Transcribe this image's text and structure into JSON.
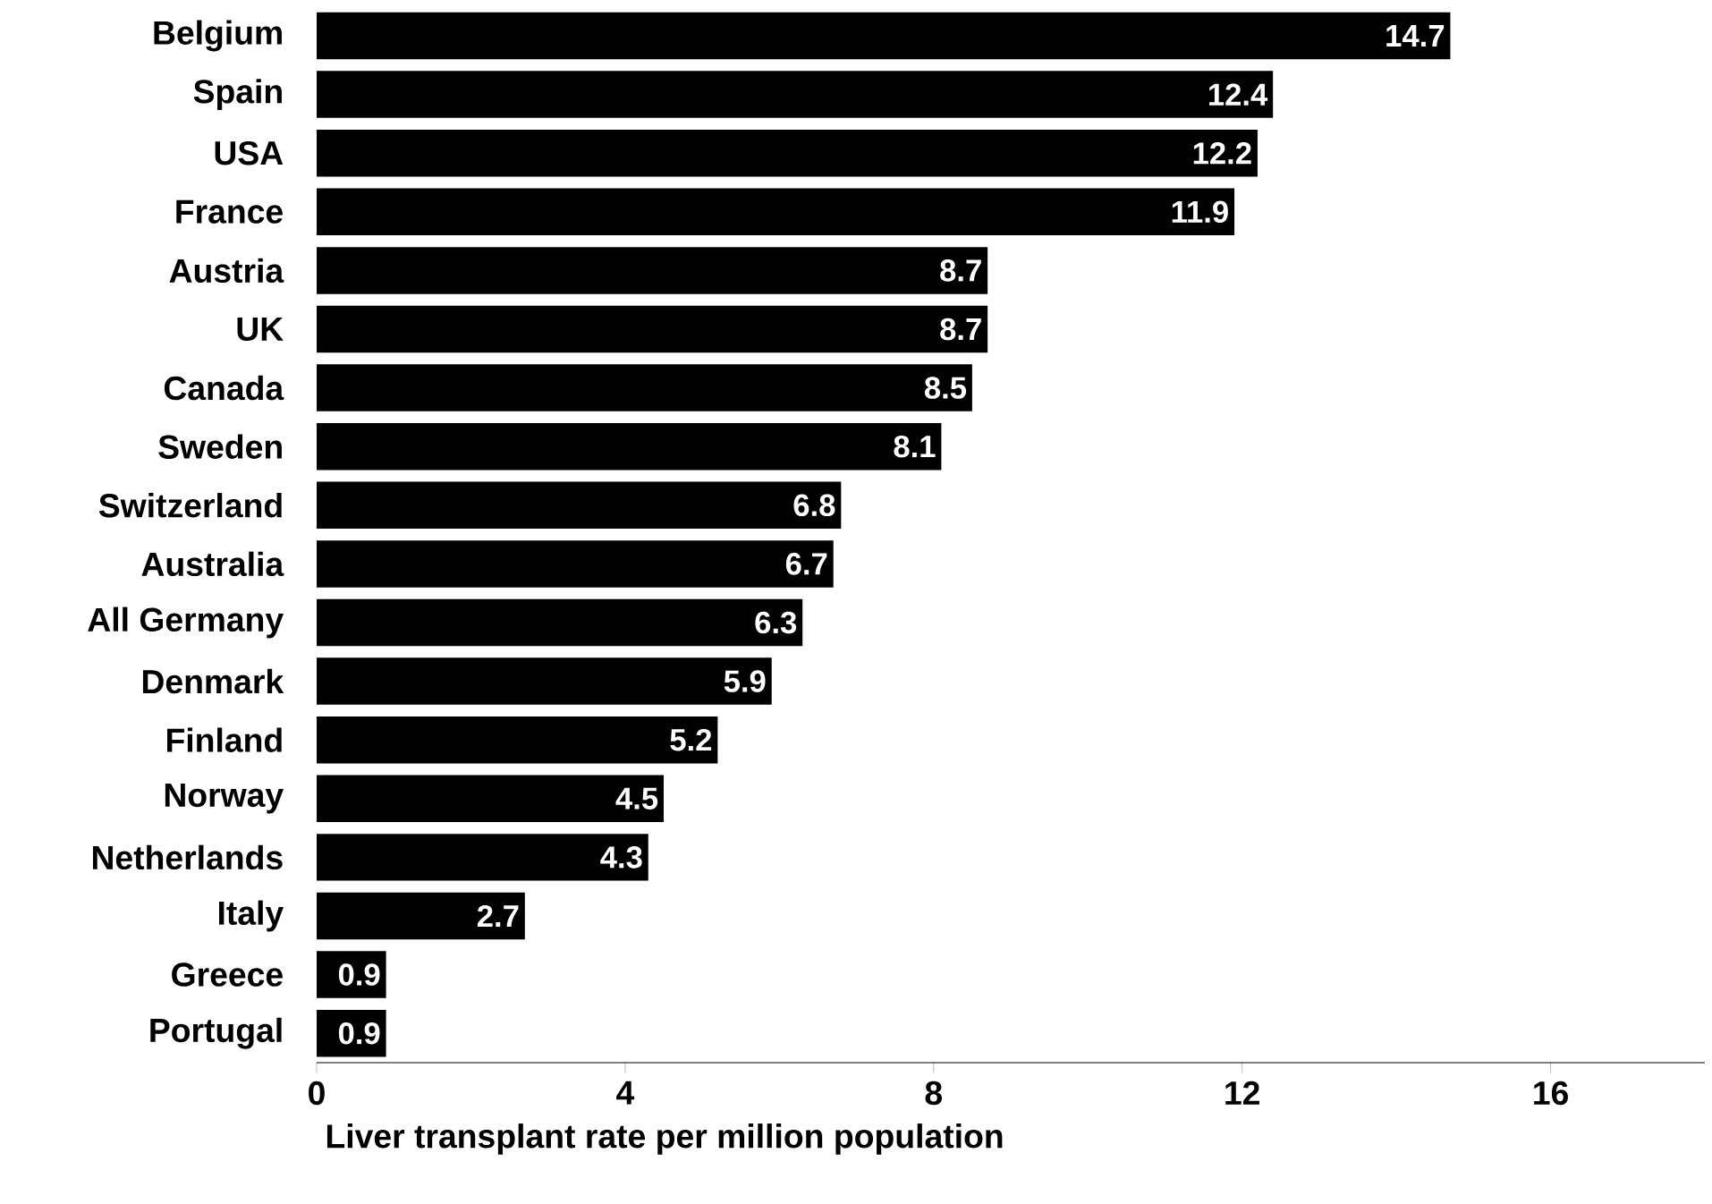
{
  "chart_data": {
    "type": "bar",
    "orientation": "horizontal",
    "xlabel": "Liver transplant rate per million population",
    "categories": [
      "Belgium",
      "Spain",
      "USA",
      "France",
      "Austria",
      "UK",
      "Canada",
      "Sweden",
      "Switzerland",
      "Australia",
      "All Germany",
      "Denmark",
      "Finland",
      "Norway",
      "Netherlands",
      "Italy",
      "Greece",
      "Portugal"
    ],
    "values": [
      14.7,
      12.4,
      12.2,
      11.9,
      8.7,
      8.7,
      8.5,
      8.1,
      6.8,
      6.7,
      6.3,
      5.9,
      5.2,
      4.5,
      4.3,
      2.7,
      0.9,
      0.9
    ],
    "color": "#000000",
    "xlim": [
      0,
      18
    ],
    "xticks": [
      0,
      4,
      8,
      12,
      16
    ],
    "data_labels": true
  }
}
